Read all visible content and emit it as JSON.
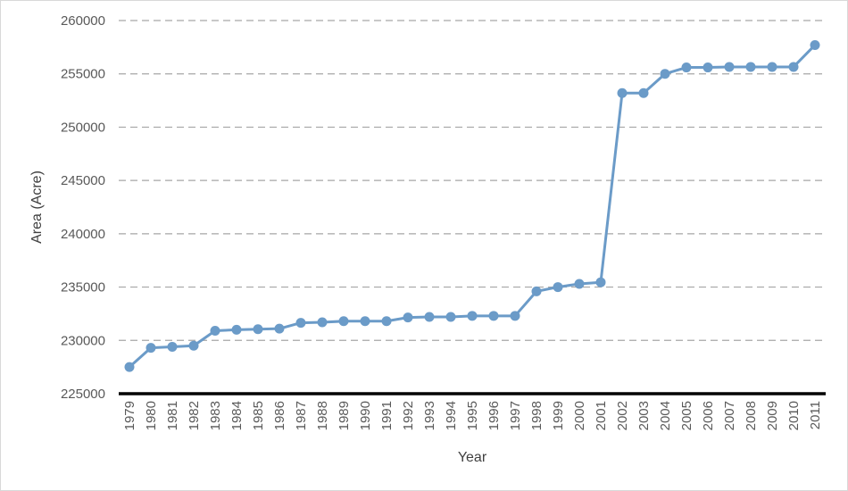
{
  "chart_data": {
    "type": "line",
    "title": "",
    "xlabel": "Year",
    "ylabel": "Area (Acre)",
    "ylim": [
      225000,
      260000
    ],
    "yticks": [
      225000,
      230000,
      235000,
      240000,
      245000,
      250000,
      255000,
      260000
    ],
    "grid": "horizontal dashed",
    "legend": "none",
    "colors": {
      "series": "#6b9bc8",
      "grid": "#a6a6a6",
      "baseline": "#000000"
    },
    "categories": [
      "1979",
      "1980",
      "1981",
      "1982",
      "1983",
      "1984",
      "1985",
      "1986",
      "1987",
      "1988",
      "1989",
      "1990",
      "1991",
      "1992",
      "1993",
      "1994",
      "1995",
      "1996",
      "1997",
      "1998",
      "1999",
      "2000",
      "2001",
      "2002",
      "2003",
      "2004",
      "2005",
      "2006",
      "2007",
      "2008",
      "2009",
      "2010",
      "2011"
    ],
    "series": [
      {
        "values": [
          227500,
          229300,
          229400,
          229500,
          230900,
          231000,
          231050,
          231100,
          231650,
          231700,
          231800,
          231800,
          231800,
          232150,
          232200,
          232200,
          232300,
          232300,
          232300,
          234600,
          235000,
          235300,
          235450,
          253200,
          253200,
          255000,
          255600,
          255600,
          255650,
          255650,
          255650,
          255650,
          257700
        ]
      }
    ]
  }
}
